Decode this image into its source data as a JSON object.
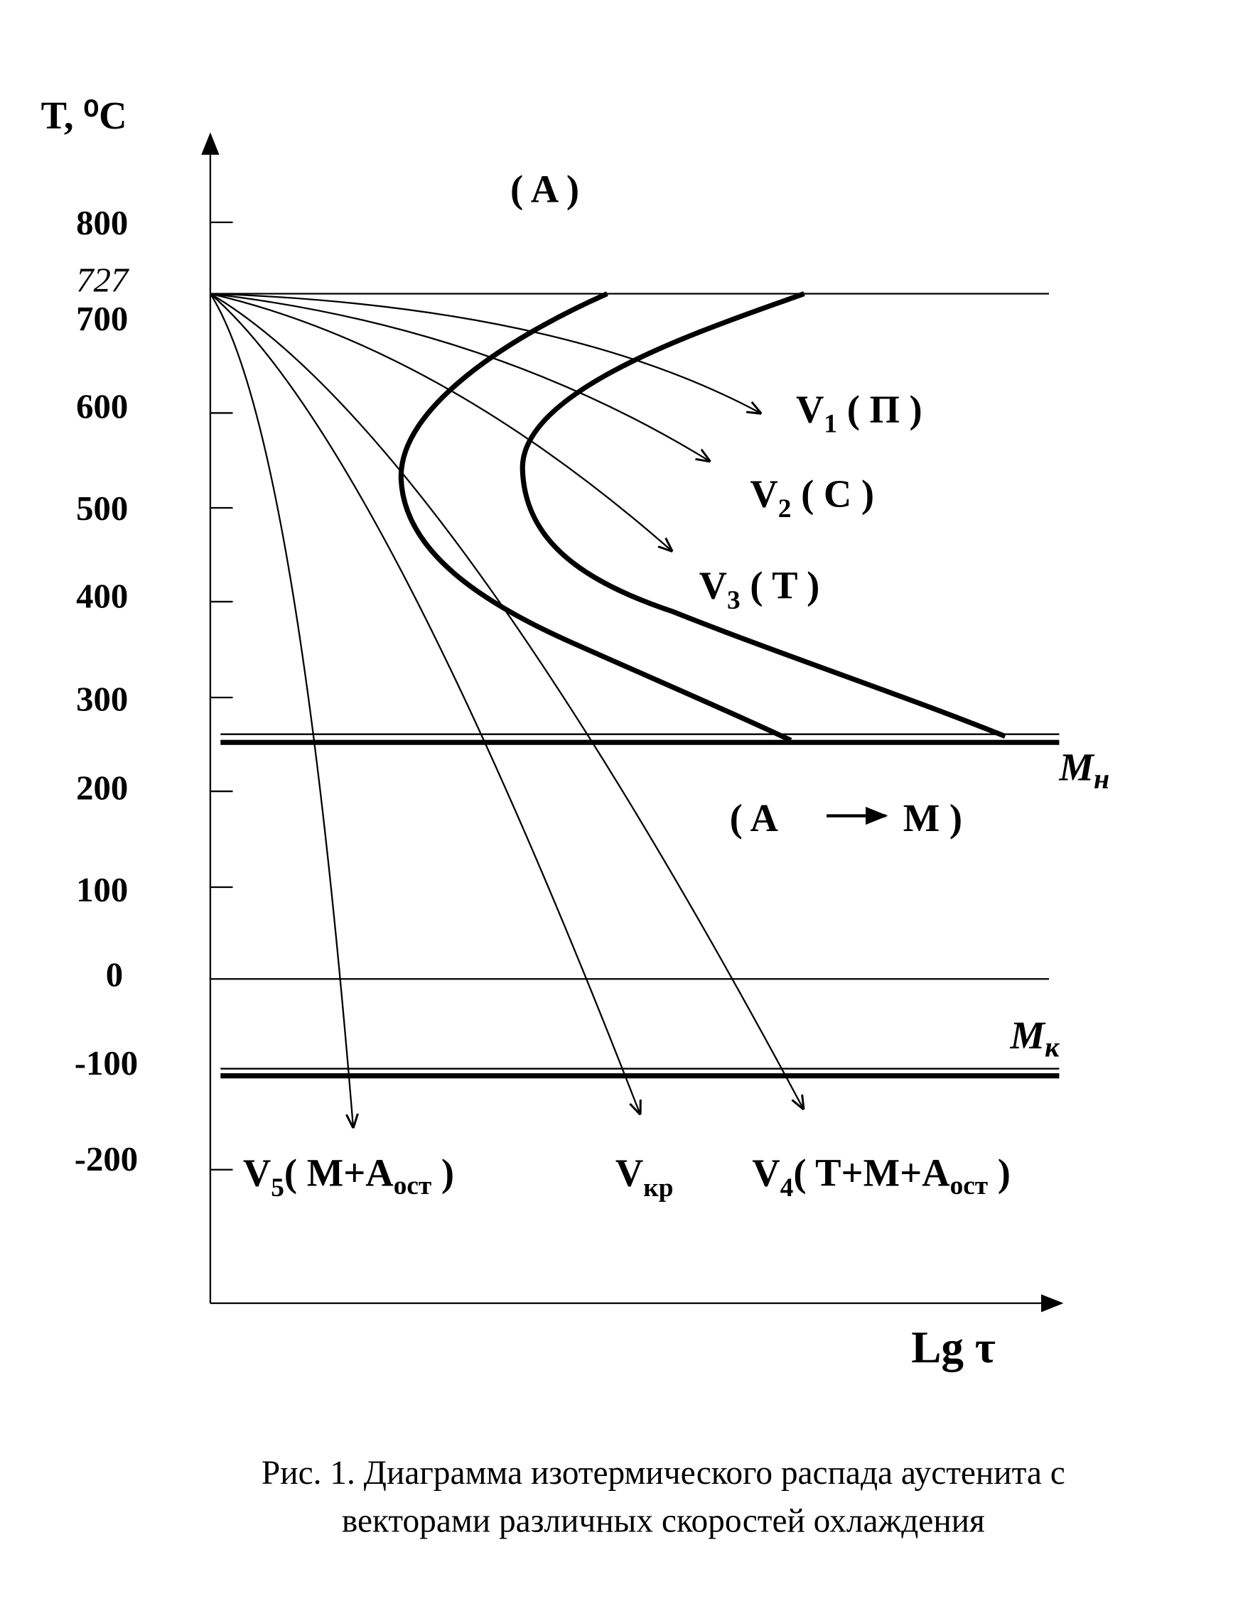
{
  "axes": {
    "y_title": "T, ⁰C",
    "x_title": "Lg τ",
    "y_ticks": [
      "800",
      "727",
      "700",
      "600",
      "500",
      "400",
      "300",
      "200",
      "100",
      "0",
      "-100",
      "-200"
    ]
  },
  "regions": {
    "austenite": "( A )",
    "martensite": "( A",
    "martensite_end": "M )",
    "ms": "M",
    "ms_sub": "н",
    "mf": "M",
    "mf_sub": "к"
  },
  "curves": [
    {
      "name": "V",
      "sub": "1",
      "phase": " ( П )"
    },
    {
      "name": "V",
      "sub": "2",
      "phase": " ( C )"
    },
    {
      "name": "V",
      "sub": "3",
      "phase": " ( T )"
    },
    {
      "name": "V",
      "sub": "5",
      "phase": "( M+A",
      "phase_sub": "ост",
      "phase_end": " )"
    },
    {
      "name": "V",
      "sub": "кр"
    },
    {
      "name": "V",
      "sub": "4",
      "phase": "( T+M+A",
      "phase_sub": "ост",
      "phase_end": " )"
    }
  ],
  "caption": [
    "Рис. 1. Диаграмма изотермического распада аустенита с",
    "векторами различных скоростей охлаждения"
  ]
}
